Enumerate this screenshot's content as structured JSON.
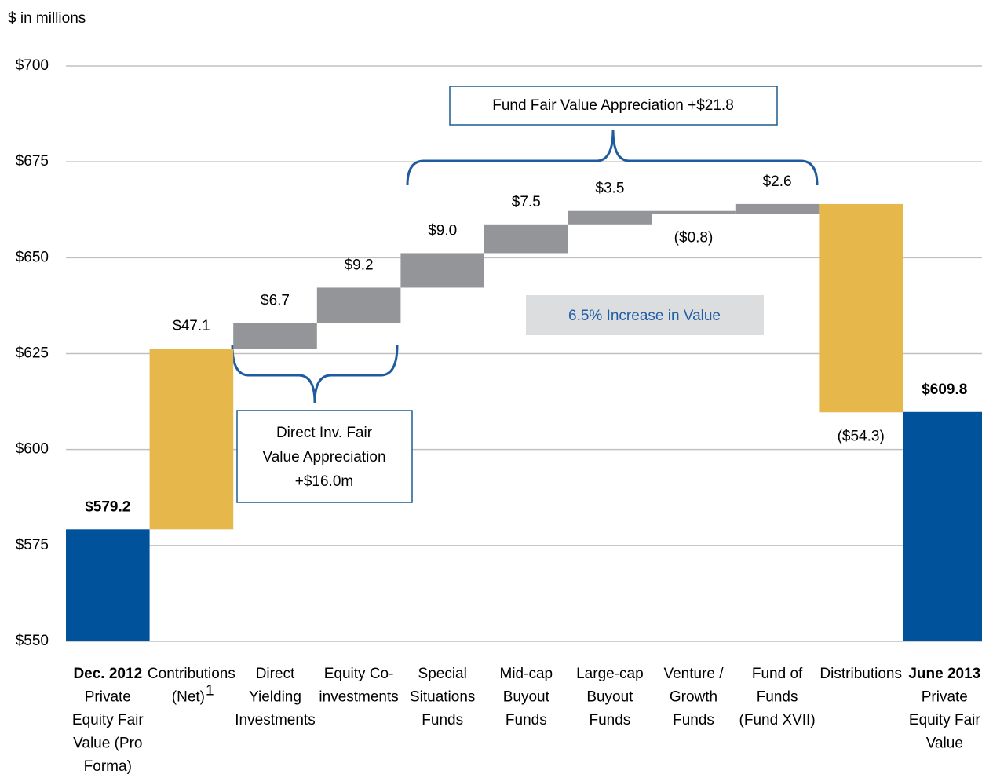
{
  "chart_data": {
    "type": "waterfall",
    "subtitle": "$ in millions",
    "categories": [
      [
        "Dec. 2012",
        "Private",
        "Equity Fair",
        "Value (Pro",
        "Forma)"
      ],
      [
        "Contributions",
        "(Net)"
      ],
      [
        "Direct",
        "Yielding",
        "Investments"
      ],
      [
        "Equity Co-",
        "investments"
      ],
      [
        "Special",
        "Situations",
        "Funds"
      ],
      [
        "Mid-cap",
        "Buyout",
        "Funds"
      ],
      [
        "Large-cap",
        "Buyout",
        "Funds"
      ],
      [
        "Venture /",
        "Growth",
        "Funds"
      ],
      [
        "Fund of",
        "Funds",
        "(Fund XVII)"
      ],
      [
        "Distributions"
      ],
      [
        "June 2013",
        "Private",
        "Equity Fair",
        "Value"
      ]
    ],
    "superscripts": [
      null,
      "1",
      null,
      null,
      null,
      null,
      null,
      null,
      null,
      null,
      null
    ],
    "measure": [
      "absolute",
      "relative",
      "relative",
      "relative",
      "relative",
      "relative",
      "relative",
      "relative",
      "relative",
      "relative",
      "total"
    ],
    "values": [
      579.2,
      47.1,
      6.7,
      9.2,
      9.0,
      7.5,
      3.5,
      -0.8,
      2.6,
      -54.3,
      609.8
    ],
    "value_labels": [
      "$579.2",
      "$47.1",
      "$6.7",
      "$9.2",
      "$9.0",
      "$7.5",
      "$3.5",
      "($0.8)",
      "$2.6",
      "($54.3)",
      "$609.8"
    ],
    "colors": [
      "#00539b",
      "#e6b84c",
      "#939598",
      "#939598",
      "#939598",
      "#939598",
      "#939598",
      "#939598",
      "#939598",
      "#e6b84c",
      "#00539b"
    ],
    "ylim": [
      550,
      700
    ],
    "yticks": [
      {
        "value": 550,
        "label": "$550"
      },
      {
        "value": 575,
        "label": "$575"
      },
      {
        "value": 600,
        "label": "$600"
      },
      {
        "value": 625,
        "label": "$625"
      },
      {
        "value": 650,
        "label": "$650"
      },
      {
        "value": 675,
        "label": "$675"
      },
      {
        "value": 700,
        "label": "$700"
      }
    ],
    "grid": true,
    "annotations": {
      "fund": [
        "Fund Fair Value Appreciation +$21.8"
      ],
      "direct": [
        "Direct Inv. Fair",
        "Value Appreciation",
        "+$16.0m"
      ],
      "increase": [
        "6.5% Increase in Value"
      ]
    }
  }
}
